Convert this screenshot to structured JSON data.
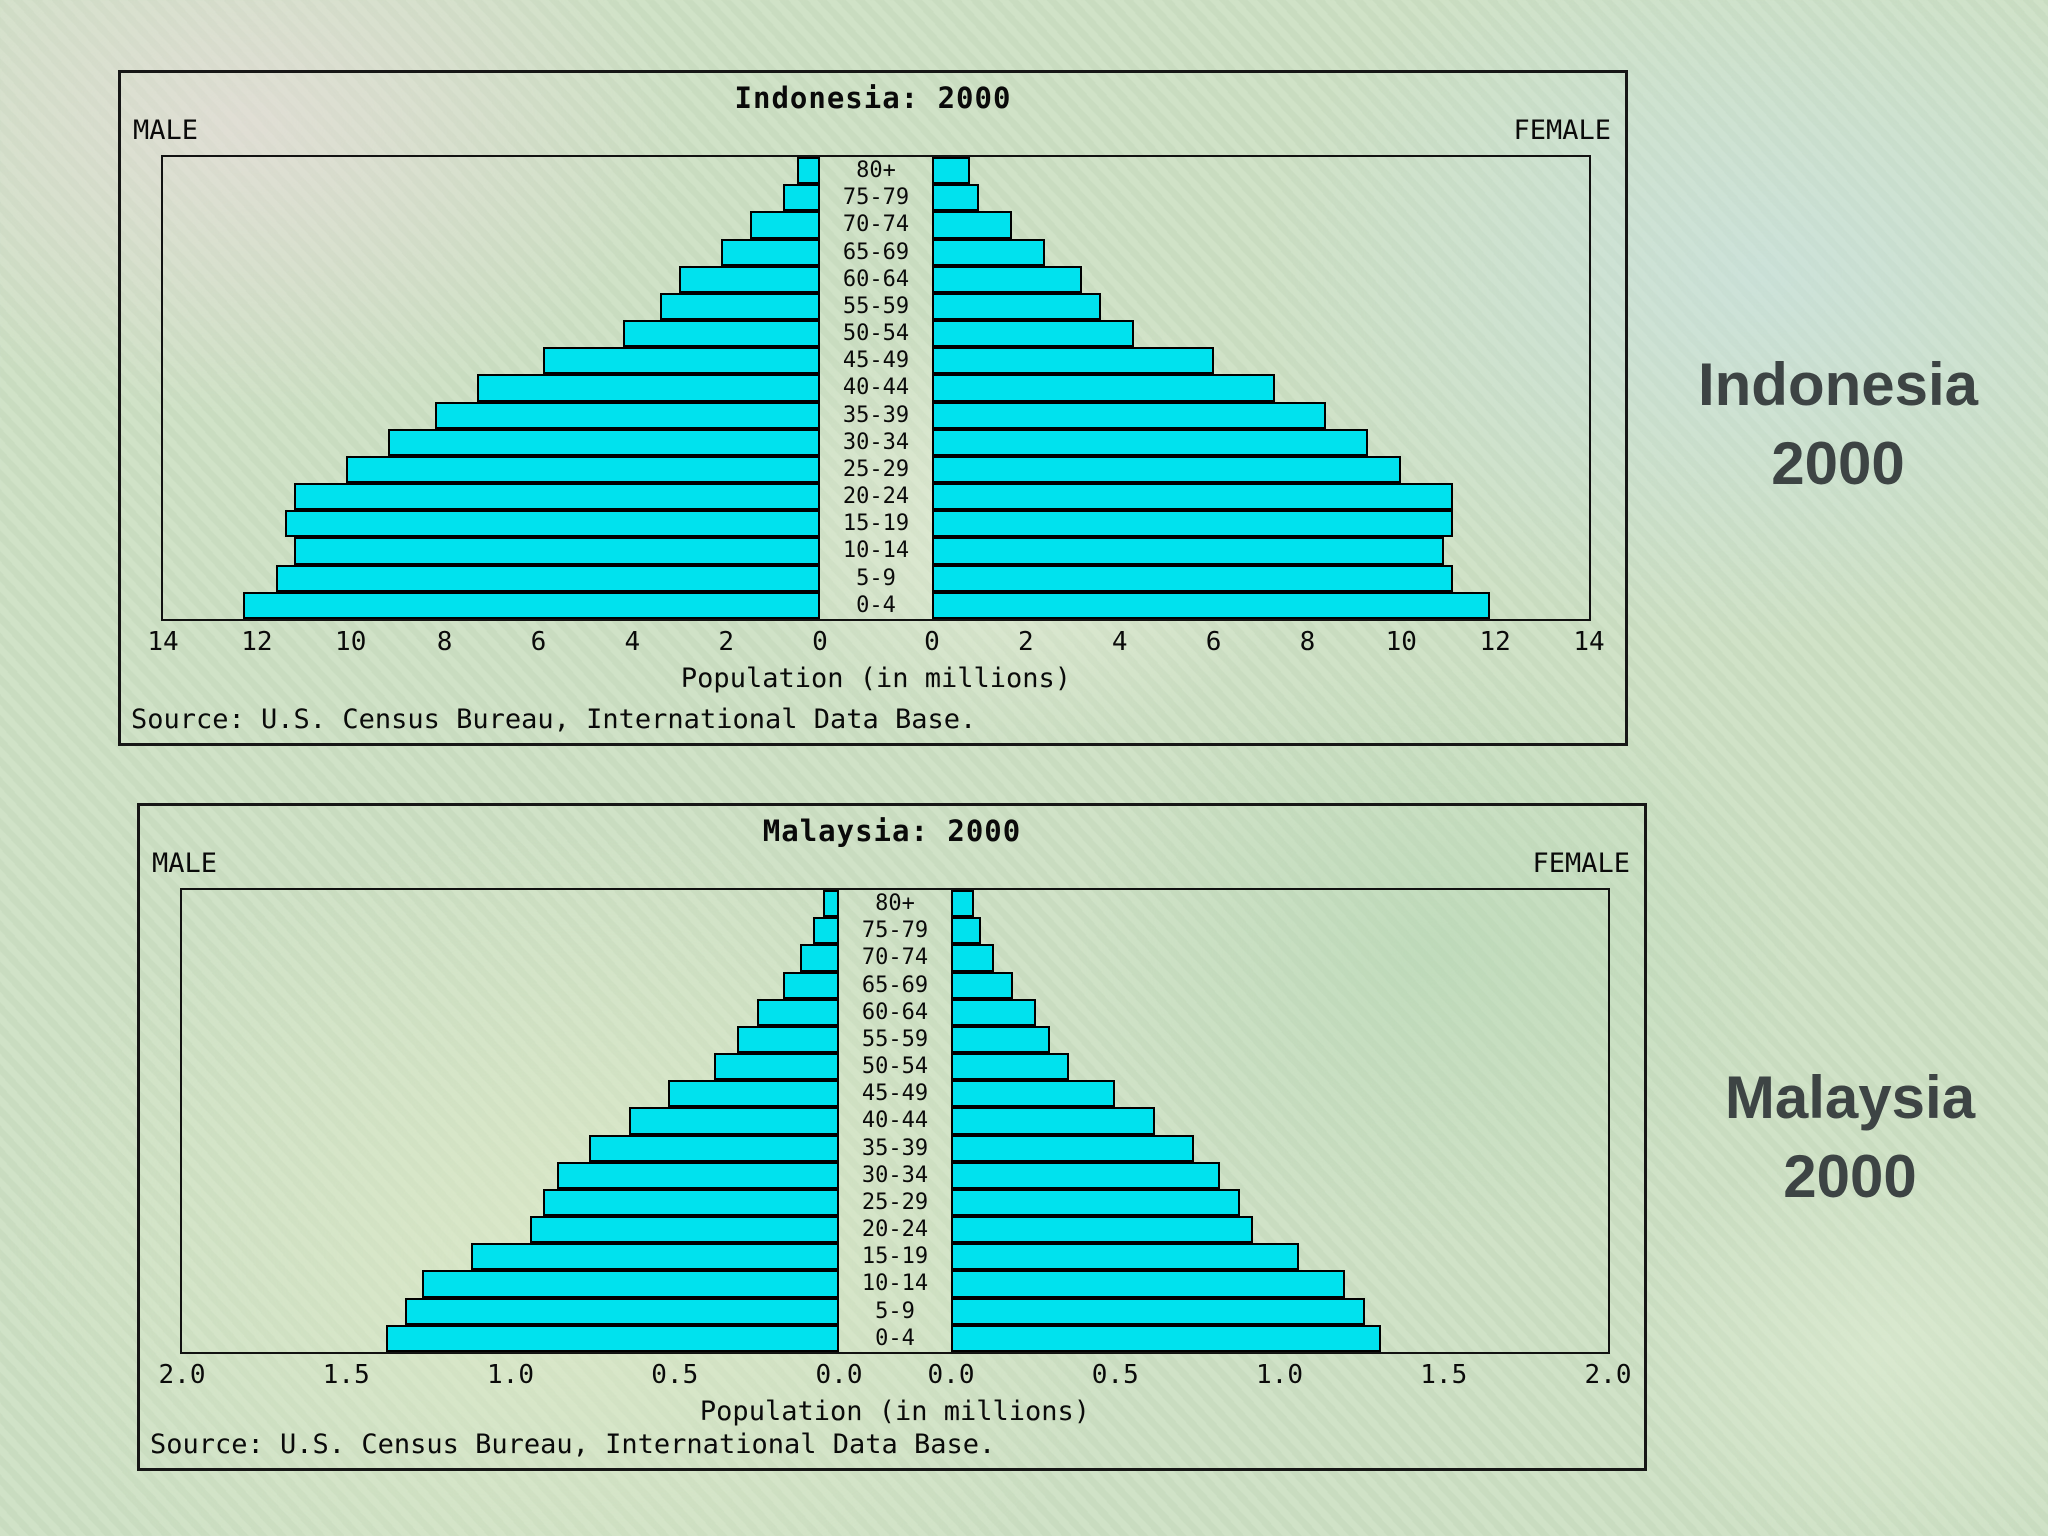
{
  "colors": {
    "bar_fill": "#00E2EE",
    "bar_border": "#000000",
    "caption_color": "#3D4444",
    "frame_color": "#161616"
  },
  "chart_data": [
    {
      "type": "bar",
      "subtype": "population-pyramid",
      "title": "Indonesia: 2000",
      "left_header": "MALE",
      "right_header": "FEMALE",
      "xlabel": "Population (in millions)",
      "source": "Source: U.S. Census Bureau, International Data Base.",
      "side_caption_line1": "Indonesia",
      "side_caption_line2": "2000",
      "xlim": [
        0,
        14
      ],
      "xtick_values": [
        0,
        2,
        4,
        6,
        8,
        10,
        12,
        14
      ],
      "xtick_labels": [
        "0",
        "2",
        "4",
        "6",
        "8",
        "10",
        "12",
        "14"
      ],
      "categories": [
        "80+",
        "75-79",
        "70-74",
        "65-69",
        "60-64",
        "55-59",
        "50-54",
        "45-49",
        "40-44",
        "35-39",
        "30-34",
        "25-29",
        "20-24",
        "15-19",
        "10-14",
        "5-9",
        "0-4"
      ],
      "series": [
        {
          "name": "Male",
          "values": [
            0.5,
            0.8,
            1.5,
            2.1,
            3.0,
            3.4,
            4.2,
            5.9,
            7.3,
            8.2,
            9.2,
            10.1,
            11.2,
            11.4,
            11.2,
            11.6,
            12.3
          ]
        },
        {
          "name": "Female",
          "values": [
            0.8,
            1.0,
            1.7,
            2.4,
            3.2,
            3.6,
            4.3,
            6.0,
            7.3,
            8.4,
            9.3,
            10.0,
            11.1,
            11.1,
            10.9,
            11.1,
            11.9
          ]
        }
      ],
      "legend": "none",
      "grid": false
    },
    {
      "type": "bar",
      "subtype": "population-pyramid",
      "title": "Malaysia: 2000",
      "left_header": "MALE",
      "right_header": "FEMALE",
      "xlabel": "Population (in millions)",
      "source": "Source: U.S. Census Bureau, International Data Base.",
      "side_caption_line1": "Malaysia",
      "side_caption_line2": "2000",
      "xlim": [
        0,
        2.0
      ],
      "xtick_values": [
        0,
        0.5,
        1.0,
        1.5,
        2.0
      ],
      "xtick_labels": [
        "0.0",
        "0.5",
        "1.0",
        "1.5",
        "2.0"
      ],
      "categories": [
        "80+",
        "75-79",
        "70-74",
        "65-69",
        "60-64",
        "55-59",
        "50-54",
        "45-49",
        "40-44",
        "35-39",
        "30-34",
        "25-29",
        "20-24",
        "15-19",
        "10-14",
        "5-9",
        "0-4"
      ],
      "series": [
        {
          "name": "Male",
          "values": [
            0.05,
            0.08,
            0.12,
            0.17,
            0.25,
            0.31,
            0.38,
            0.52,
            0.64,
            0.76,
            0.86,
            0.9,
            0.94,
            1.12,
            1.27,
            1.32,
            1.38
          ]
        },
        {
          "name": "Female",
          "values": [
            0.07,
            0.09,
            0.13,
            0.19,
            0.26,
            0.3,
            0.36,
            0.5,
            0.62,
            0.74,
            0.82,
            0.88,
            0.92,
            1.06,
            1.2,
            1.26,
            1.31
          ]
        }
      ],
      "legend": "none",
      "grid": false
    }
  ]
}
